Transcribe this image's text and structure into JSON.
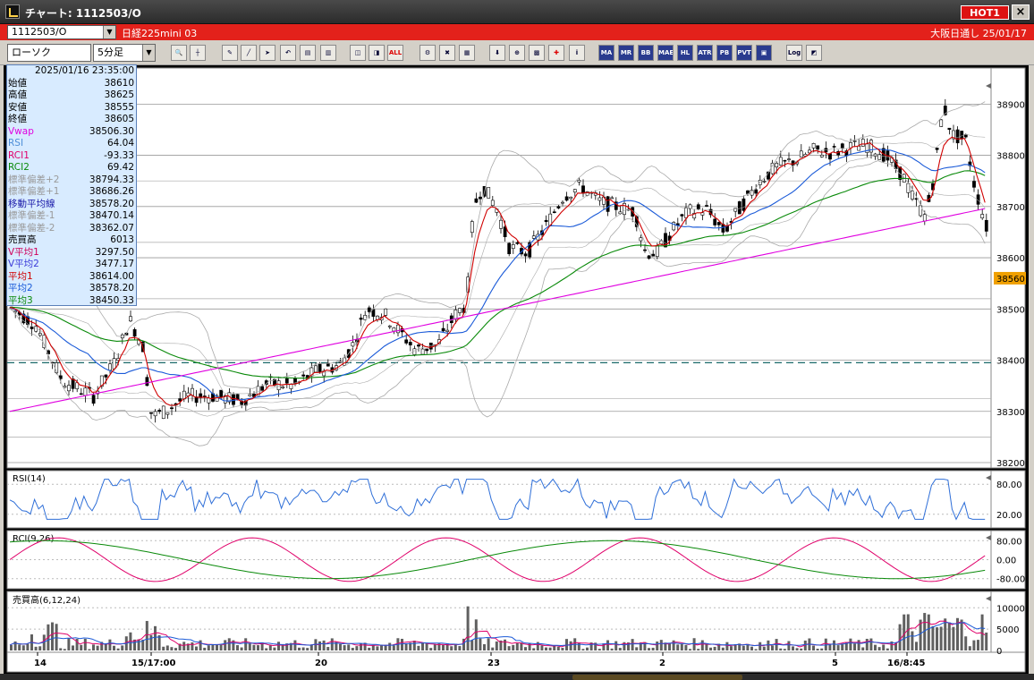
{
  "window": {
    "title": "チャート: 1112503/O",
    "hot_label": "HOT1",
    "close_label": "×"
  },
  "symbolbar": {
    "symbol": "1112503/O",
    "name": "日経225mini 03",
    "market_date": "大阪日通し 25/01/17"
  },
  "toolbar": {
    "chart_type": "ローソク",
    "period": "5分足",
    "buttons": [
      "zoom",
      "crosshair",
      "pen",
      "draw",
      "pointer",
      "arrow",
      "memo",
      "delete",
      "bar1",
      "bar2",
      "ALL",
      "settings",
      "tools",
      "color",
      "export",
      "magnify",
      "grid",
      "cross",
      "info",
      "MA",
      "BB",
      "MAE",
      "HL",
      "ATR",
      "PB",
      "PVT",
      "box",
      "Log",
      "split"
    ]
  },
  "info_panel": {
    "datetime": "2025/01/16 23:35:00",
    "rows": [
      {
        "label": "始値",
        "value": "38610",
        "color": "#000000"
      },
      {
        "label": "高値",
        "value": "38625",
        "color": "#000000"
      },
      {
        "label": "安値",
        "value": "38555",
        "color": "#000000"
      },
      {
        "label": "終値",
        "value": "38605",
        "color": "#000000"
      },
      {
        "label": "Vwap",
        "value": "38506.30",
        "color": "#e000e0"
      },
      {
        "label": "RSI",
        "value": "64.04",
        "color": "#4f8fd8"
      },
      {
        "label": "RCI1",
        "value": "-93.33",
        "color": "#e0006a"
      },
      {
        "label": "RCI2",
        "value": "69.42",
        "color": "#0a8a0a"
      },
      {
        "label": "標準偏差+2",
        "value": "38794.33",
        "color": "#9a9a9a"
      },
      {
        "label": "標準偏差+1",
        "value": "38686.26",
        "color": "#9a9a9a"
      },
      {
        "label": "移動平均線",
        "value": "38578.20",
        "color": "#1a1aa8"
      },
      {
        "label": "標準偏差-1",
        "value": "38470.14",
        "color": "#9a9a9a"
      },
      {
        "label": "標準偏差-2",
        "value": "38362.07",
        "color": "#9a9a9a"
      },
      {
        "label": "売買高",
        "value": "6013",
        "color": "#000000"
      },
      {
        "label": "V平均1",
        "value": "3297.50",
        "color": "#d0005a"
      },
      {
        "label": "V平均2",
        "value": "3477.17",
        "color": "#3a3ad8"
      },
      {
        "label": "平均1",
        "value": "38614.00",
        "color": "#d00000"
      },
      {
        "label": "平均2",
        "value": "38578.20",
        "color": "#1a5ad8"
      },
      {
        "label": "平均3",
        "value": "38450.33",
        "color": "#0a8a0a"
      }
    ]
  },
  "panels": {
    "rsi_title": "RSI(14)",
    "rci_title": "RCI(9,26)",
    "volume_title": "売買高(6,12,24)"
  },
  "price_axis": {
    "labels": [
      "38900",
      "38800",
      "38700",
      "38600",
      "38500",
      "38400",
      "38300",
      "38200"
    ],
    "current": "38560"
  },
  "rsi_axis": {
    "labels": [
      "80.00",
      "20.00"
    ]
  },
  "rci_axis": {
    "labels": [
      "80.00",
      "0.00",
      "-80.00"
    ]
  },
  "volume_axis": {
    "labels": [
      "10000",
      "5000",
      "0"
    ]
  },
  "time_axis": {
    "labels": [
      "14",
      "15/17:00",
      "20",
      "23",
      "2",
      "5",
      "16/8:45"
    ]
  },
  "colors": {
    "candle_up": "#ffffff",
    "candle_down": "#000000",
    "sma": "#1a5ad8",
    "ema_fast": "#d00000",
    "ema_slow": "#0a8a0a",
    "vwap": "#e000e0",
    "band": "#aaaaaa",
    "rsi": "#2f6fd8",
    "rci1": "#e0006a",
    "rci2": "#0a8a0a",
    "dashed": "#1a6a6a",
    "current": "#f0a000"
  },
  "chart_data": {
    "type": "candlestick",
    "yrange": [
      38200,
      38960
    ],
    "current_price": 38560,
    "dashed_level": 38395,
    "xlabels": [
      "14",
      "15/17:00",
      "20",
      "23",
      "2",
      "5",
      "16/8:45"
    ]
  }
}
